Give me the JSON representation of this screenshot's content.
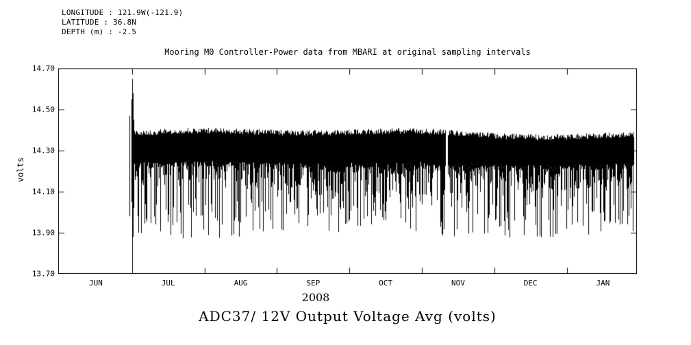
{
  "header": {
    "longitude": "LONGITUDE : 121.9W(-121.9)",
    "latitude": "LATITUDE : 36.8N",
    "depth": "DEPTH (m) : -2.5"
  },
  "chart_data": {
    "type": "line",
    "title": "Mooring M0 Controller-Power data from MBARI at original sampling intervals",
    "bottom_title": "ADC37/ 12V Output Voltage Avg (volts)",
    "ylabel": "volts",
    "year_label": "2008",
    "ylim": [
      13.7,
      14.7
    ],
    "yticks": [
      14.7,
      14.5,
      14.3,
      14.1,
      13.9,
      13.7
    ],
    "xticks": [
      "JUN",
      "JUL",
      "AUG",
      "SEP",
      "OCT",
      "NOV",
      "DEC",
      "JAN"
    ],
    "xtick_start_fraction": 0.065,
    "xtick_step_fraction": 0.1252,
    "grid": false,
    "legend": false,
    "line_color": "#000000",
    "series": [
      {
        "name": "ADC37/ 12V Output Voltage Avg",
        "start_fraction": 0.1278,
        "end_fraction": 0.994,
        "initial_spike": {
          "peak": 14.65,
          "trough": 13.73,
          "pre_peak": 14.47
        },
        "band": {
          "top": 14.38,
          "bottom": 14.24
        },
        "dropout_depth_min": 13.87,
        "dropout_depth_max": 14.08,
        "gaps_fraction": [
          0.671
        ],
        "summary": "Dense oscillation band ~14.24-14.40 V with frequent downward dropout spikes to ~13.87-14.08 V across JUN 2008 to JAN 2009; initial transient in mid-June peaks at 14.65 V and dips to 13.73 V; brief data gap near early NOV."
      }
    ]
  }
}
